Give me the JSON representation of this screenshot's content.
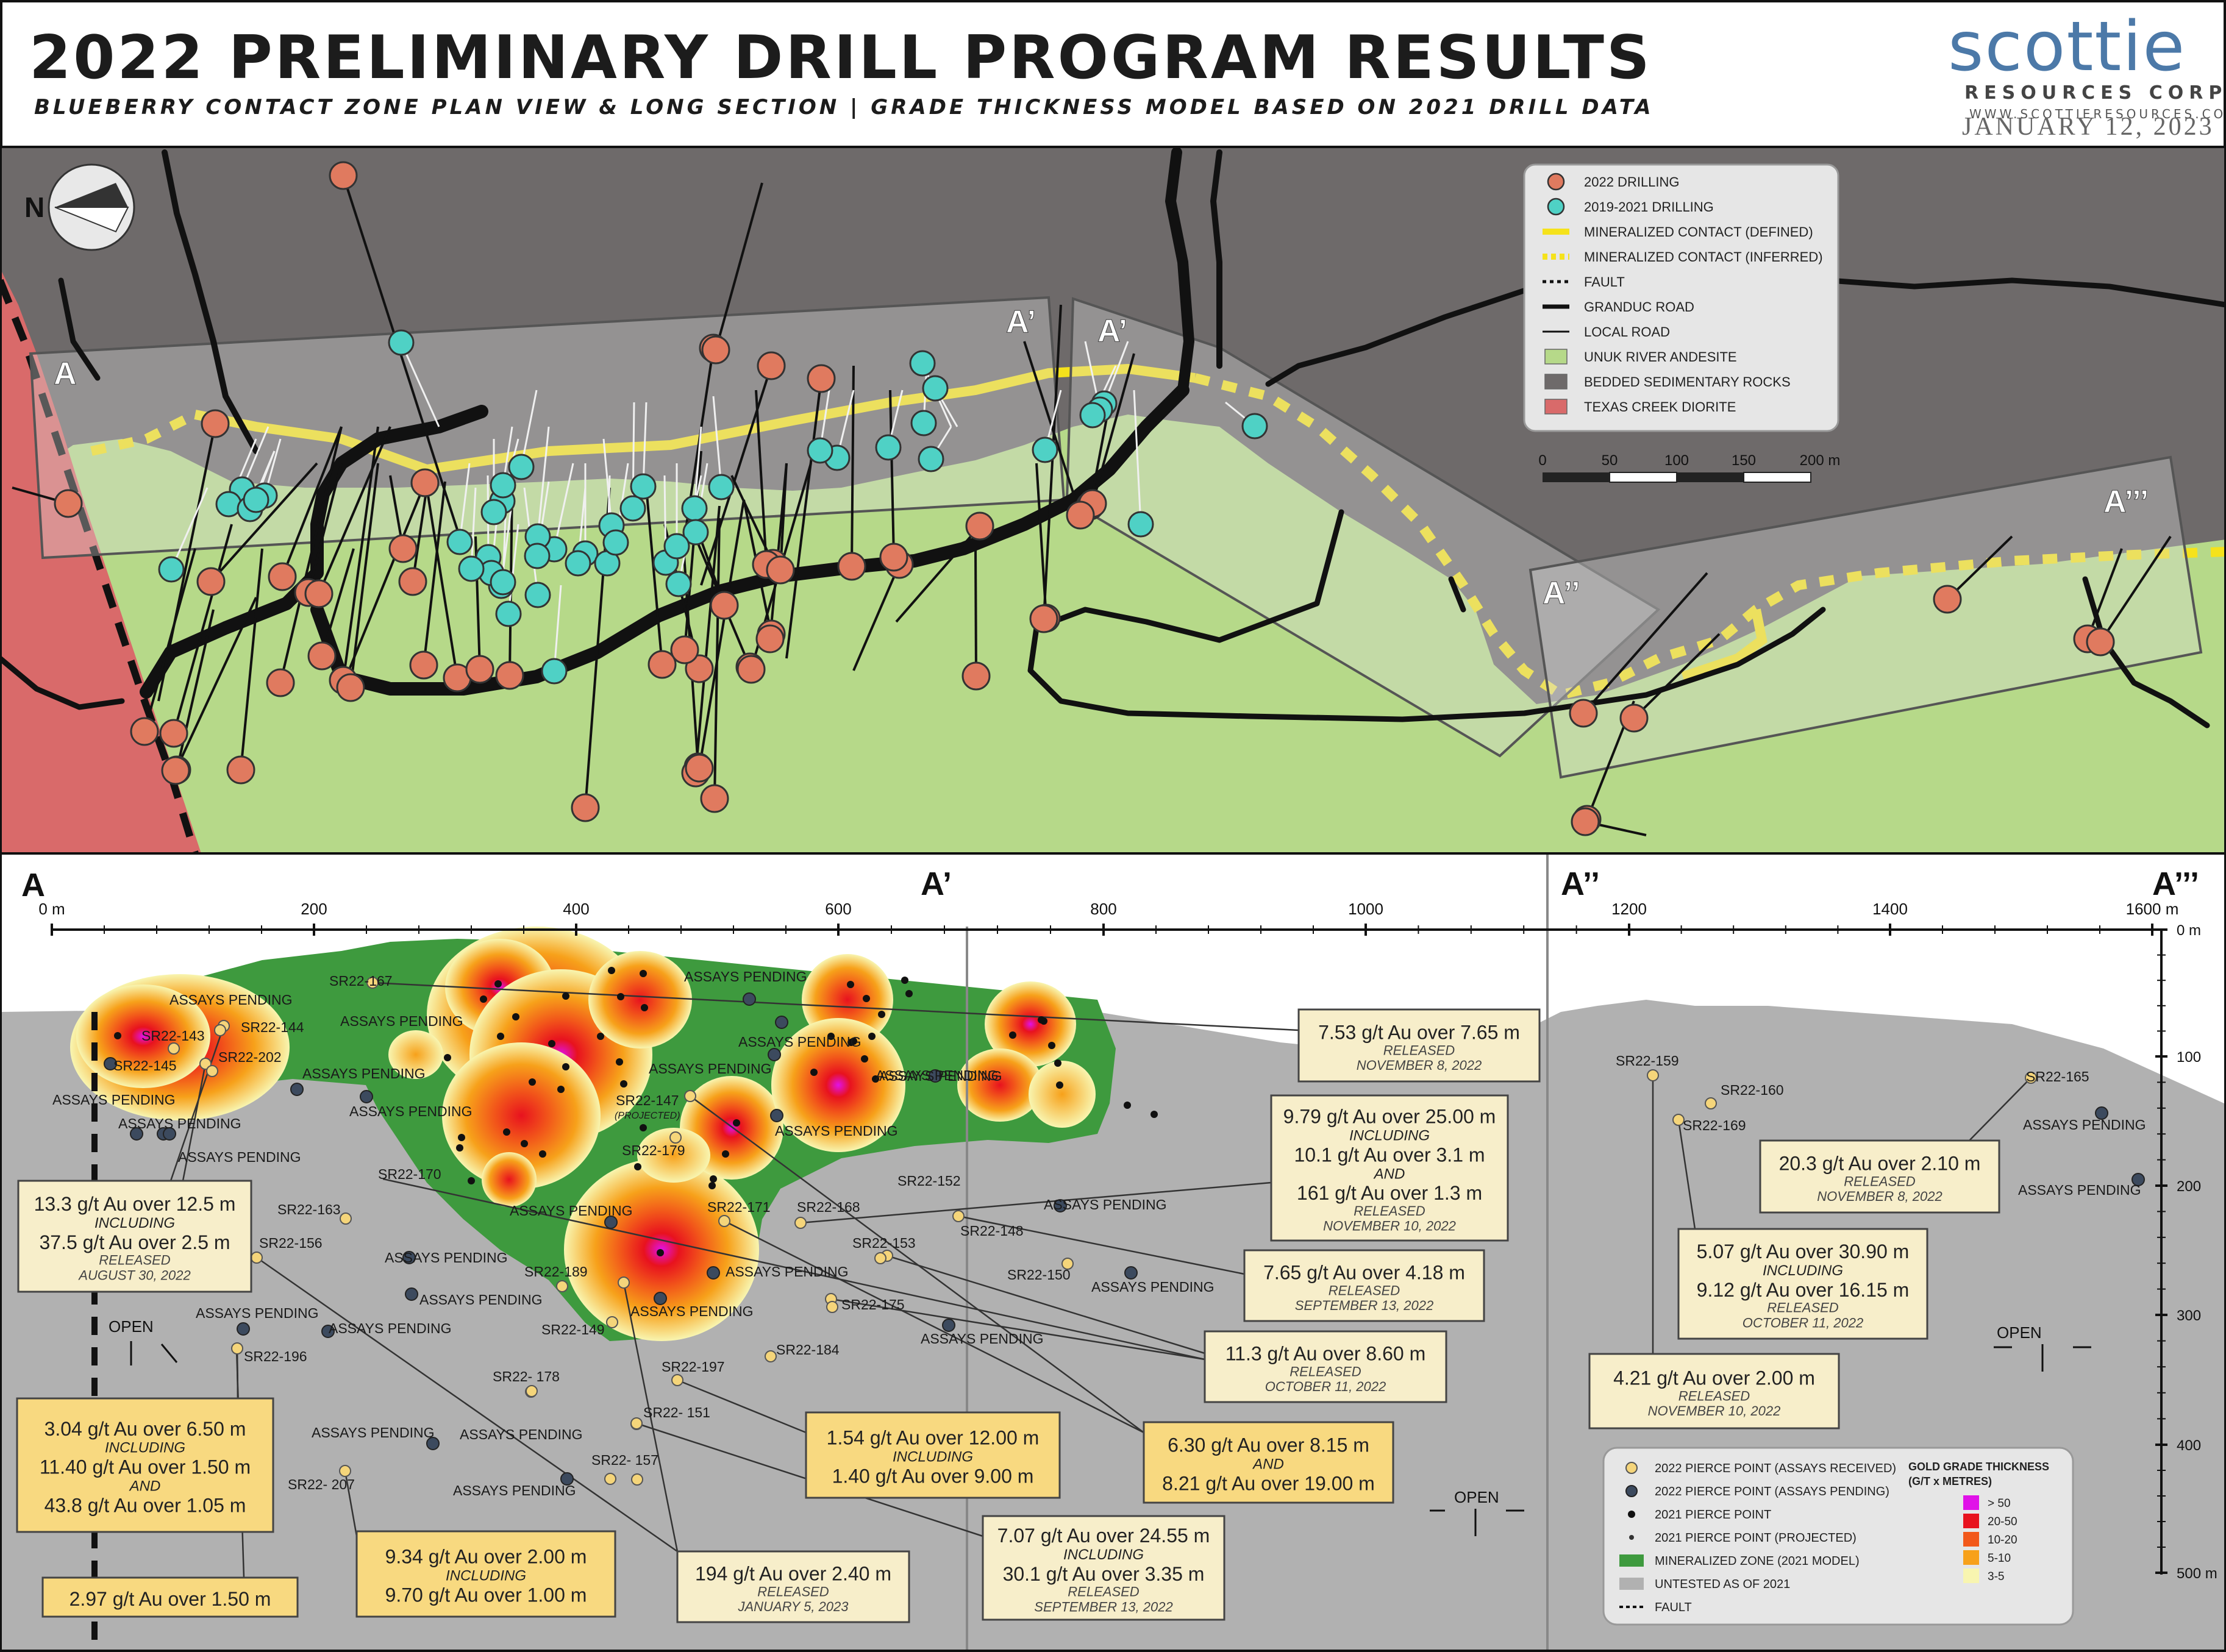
{
  "header": {
    "title": "2022 PRELIMINARY DRILL PROGRAM RESULTS",
    "subtitle": "BLUEBERRY CONTACT ZONE PLAN VIEW & LONG SECTION | GRADE THICKNESS MODEL BASED ON 2021 DRILL DATA",
    "logo_main": "scottie",
    "logo_sub": "RESOURCES CORP",
    "logo_url": "WWW.SCOTTIERESOURCES.COM",
    "date": "JANUARY 12, 2023"
  },
  "colors": {
    "sediment": "#6e6a6a",
    "andesite": "#b6d989",
    "diorite": "#d96a6a",
    "drill_2022": "#e07a5f",
    "drill_2019_2021": "#4fd1c5",
    "contact": "#f5e21b",
    "zone": "#3e9a3e",
    "untested": "#b1b1b1"
  },
  "plan_view": {
    "section_labels": {
      "a": "A",
      "a1": "A’",
      "a1b": "A’",
      "a2": "A’’",
      "a3": "A’’’"
    },
    "north_letter": "N",
    "legend": [
      {
        "icon": "drill-2022-icon",
        "label": "2022 DRILLING"
      },
      {
        "icon": "drill-2019-icon",
        "label": "2019-2021 DRILLING"
      },
      {
        "icon": "contact-defined-icon",
        "label": "MINERALIZED CONTACT (DEFINED)"
      },
      {
        "icon": "contact-inferred-icon",
        "label": "MINERALIZED CONTACT (INFERRED)"
      },
      {
        "icon": "fault-icon",
        "label": "FAULT"
      },
      {
        "icon": "granduc-road-icon",
        "label": "GRANDUC ROAD"
      },
      {
        "icon": "local-road-icon",
        "label": "LOCAL ROAD"
      },
      {
        "icon": "andesite-swatch-icon",
        "label": "UNUK RIVER ANDESITE"
      },
      {
        "icon": "sediment-swatch-icon",
        "label": "BEDDED SEDIMENTARY ROCKS"
      },
      {
        "icon": "diorite-swatch-icon",
        "label": "TEXAS CREEK DIORITE"
      }
    ],
    "scale_labels": [
      "0",
      "50",
      "100",
      "150",
      "200 m"
    ]
  },
  "long_section": {
    "section_labels": {
      "a": "A",
      "a1": "A’",
      "a2": "A’’",
      "a3": "A’’’"
    },
    "x_ticks": [
      "0 m",
      "200",
      "400",
      "600",
      "800",
      "1000",
      "1200",
      "1400",
      "1600 m"
    ],
    "y_ticks": [
      "0 m",
      "100",
      "200",
      "300",
      "400",
      "500 m"
    ],
    "hole_labels": [
      "SR22-167",
      "SR22-144",
      "SR22-143",
      "SR22-202",
      "SR22-145",
      "SR22-147",
      "(PROJECTED)",
      "SR22-179",
      "SR22-170",
      "SR22-171",
      "SR22-168",
      "SR22-152",
      "SR22-148",
      "SR22-163",
      "SR22-156",
      "SR22-153",
      "SR22-150",
      "SR22-189",
      "SR22-175",
      "SR22-149",
      "SR22-184",
      "SR22-196",
      "SR22- 178",
      "SR22-197",
      "SR22- 151",
      "SR22- 157",
      "SR22- 207",
      "SR22-159",
      "SR22-160",
      "SR22-169",
      "SR22-165"
    ],
    "pending_label": "ASSAYS PENDING",
    "open_label": "OPEN",
    "callouts": [
      {
        "lines": [
          "7.53 g/t Au over 7.65 m"
        ],
        "status": "RELEASED",
        "date": "NOVEMBER 8, 2022"
      },
      {
        "lines": [
          "9.79 g/t Au over 25.00 m",
          "INCLUDING",
          "10.1 g/t Au over 3.1 m",
          "AND",
          "161 g/t Au over 1.3 m"
        ],
        "status": "RELEASED",
        "date": "NOVEMBER 10, 2022"
      },
      {
        "lines": [
          "13.3 g/t Au over 12.5 m",
          "INCLUDING",
          "37.5 g/t Au over 2.5 m"
        ],
        "status": "RELEASED",
        "date": "AUGUST 30, 2022"
      },
      {
        "lines": [
          "7.65 g/t Au over 4.18 m"
        ],
        "status": "RELEASED",
        "date": "SEPTEMBER 13, 2022"
      },
      {
        "lines": [
          "11.3 g/t Au over 8.60 m"
        ],
        "status": "RELEASED",
        "date": "OCTOBER 11, 2022"
      },
      {
        "lines": [
          "6.30 g/t Au over 8.15 m",
          "AND",
          "8.21 g/t Au over 19.00 m"
        ],
        "status": "",
        "date": ""
      },
      {
        "lines": [
          "1.54 g/t Au over 12.00 m",
          "INCLUDING",
          "1.40 g/t Au over 9.00 m"
        ],
        "status": "",
        "date": ""
      },
      {
        "lines": [
          "3.04 g/t Au over 6.50 m",
          "INCLUDING",
          "11.40 g/t Au over 1.50 m",
          "AND",
          "43.8 g/t Au over 1.05 m"
        ],
        "status": "",
        "date": ""
      },
      {
        "lines": [
          "2.97 g/t Au over 1.50 m"
        ],
        "status": "",
        "date": ""
      },
      {
        "lines": [
          "9.34 g/t Au over 2.00 m",
          "INCLUDING",
          "9.70 g/t Au over 1.00 m"
        ],
        "status": "",
        "date": ""
      },
      {
        "lines": [
          "194 g/t Au over 2.40 m"
        ],
        "status": "RELEASED",
        "date": "JANUARY 5, 2023"
      },
      {
        "lines": [
          "7.07 g/t Au over 24.55 m",
          "INCLUDING",
          "30.1 g/t Au over 3.35 m"
        ],
        "status": "RELEASED",
        "date": "SEPTEMBER 13, 2022"
      },
      {
        "lines": [
          "20.3 g/t Au over 2.10 m"
        ],
        "status": "RELEASED",
        "date": "NOVEMBER 8, 2022"
      },
      {
        "lines": [
          "5.07 g/t Au over 30.90 m",
          "INCLUDING",
          "9.12 g/t Au over 16.15 m"
        ],
        "status": "RELEASED",
        "date": "OCTOBER 11, 2022"
      },
      {
        "lines": [
          "4.21 g/t Au over 2.00 m"
        ],
        "status": "RELEASED",
        "date": "NOVEMBER 10, 2022"
      }
    ],
    "legend": {
      "items": [
        "2022 PIERCE POINT (ASSAYS RECEIVED)",
        "2022 PIERCE POINT (ASSAYS PENDING)",
        "2021 PIERCE POINT",
        "2021 PIERCE POINT (PROJECTED)",
        "MINERALIZED ZONE (2021 MODEL)",
        "UNTESTED AS OF 2021",
        "FAULT"
      ],
      "grade_title": [
        "GOLD GRADE THICKNESS",
        "(G/T x METRES)"
      ],
      "grade_bins": [
        "> 50",
        "20-50",
        "10-20",
        "5-10",
        "3-5"
      ],
      "grade_colors": [
        "#e012e8",
        "#e8121e",
        "#f2581a",
        "#f7a11a",
        "#f8f5b0"
      ]
    }
  }
}
